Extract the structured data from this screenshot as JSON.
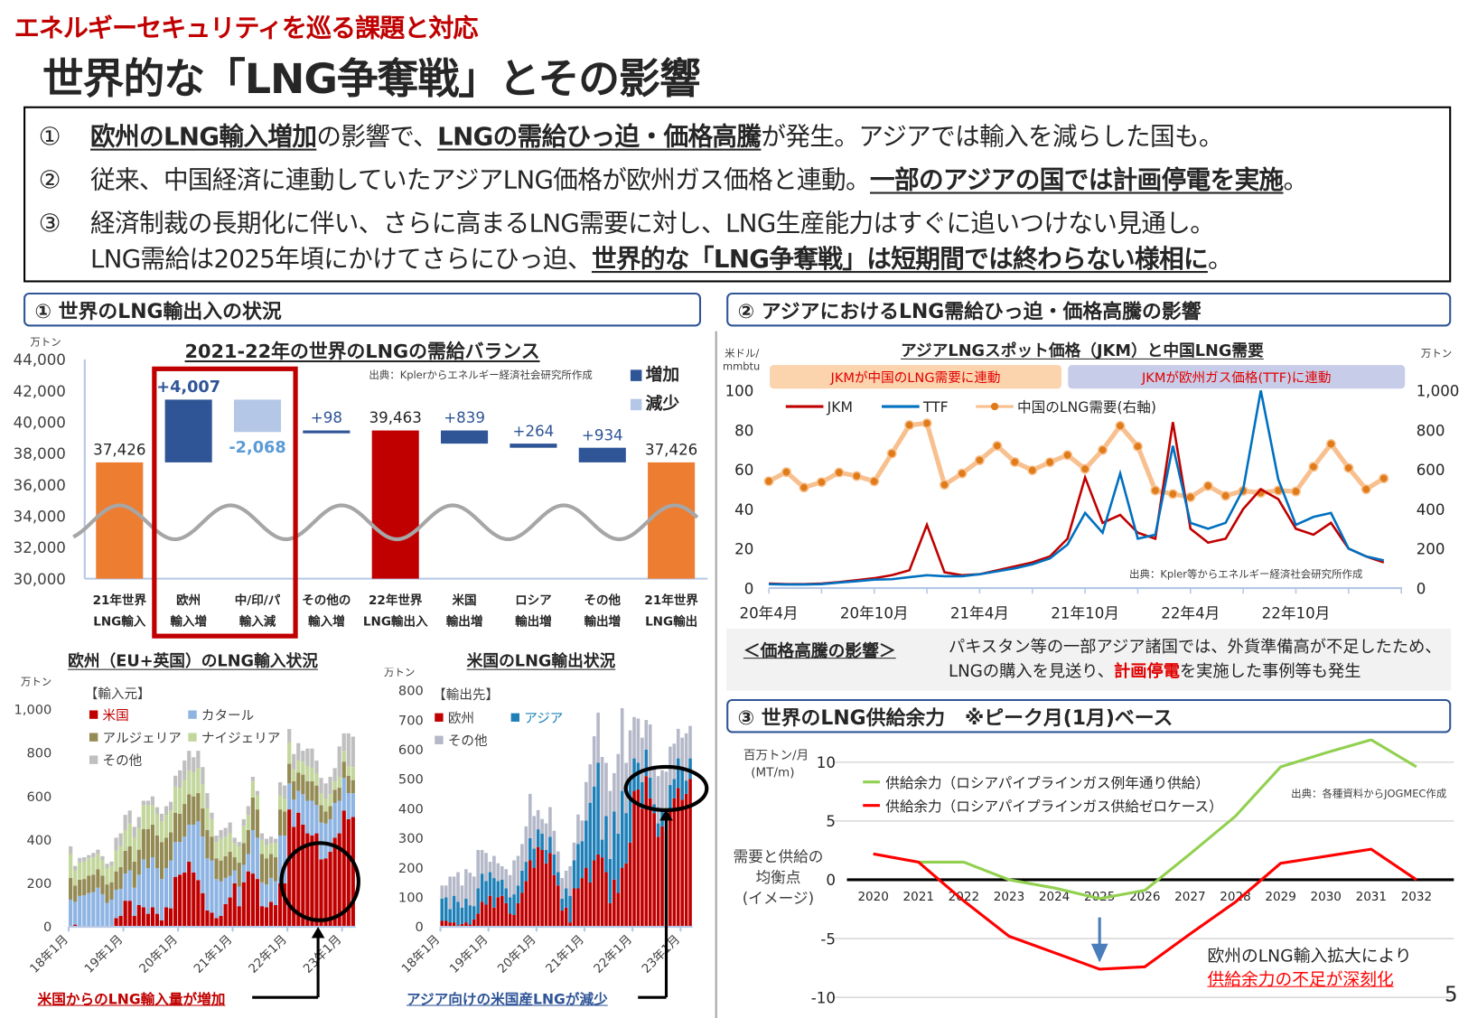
{
  "header": {
    "kicker": "エネルギーセキュリティを巡る課題と対応",
    "title": "世界的な「LNG争奪戦」とその影響"
  },
  "summary": {
    "line1": {
      "num": "①",
      "s1": "欧州のLNG輸入増加",
      "s2": "の影響で、",
      "s3": "LNGの需給ひっ迫・価格高騰",
      "s4": "が発生。アジアでは輸入を減らした国も。"
    },
    "line2": {
      "num": "②",
      "s1": "従来、中国経済に連動していたアジアLNG価格が欧州ガス価格と連動。",
      "s2": "一部のアジアの国では計画停電を実施",
      "s3": "。"
    },
    "line3": {
      "num": "③",
      "s1": "経済制裁の長期化に伴い、さらに高まるLNG需要に対し、LNG生産能力はすぐに追いつけない見通し。"
    },
    "line4": {
      "s1": "LNG需給は2025年頃にかけてさらにひっ迫、",
      "s2": "世界的な「LNG争奪戦」は短期間では終わらない様相に",
      "s3": "。"
    }
  },
  "sections": {
    "s1": "①  世界のLNG輸出入の状況",
    "s2": "②  アジアにおけるLNG需給ひっ迫・価格高騰の影響",
    "s3": "③  世界のLNG供給余力　※ピーク月(1月)ベース"
  },
  "impact": {
    "heading": "＜価格高騰の影響＞",
    "line1": "パキスタン等の一部アジア諸国では、外貨準備高が不足したため、",
    "line2a": "LNGの購入を見送り、",
    "line2b": "計画停電",
    "line2c": "を実施した事例等も発生"
  },
  "annotations": {
    "europe_caption": "米国からのLNG輸入量が増加",
    "us_caption": "アジア向けの米国産LNGが減少",
    "supply_note1": "欧州のLNG輸入拡大により",
    "supply_note2": "供給余力の不足が深刻化"
  },
  "page_number": "5",
  "colors": {
    "accent_red": "#c00000",
    "section_border": "#2f5597"
  },
  "chart_data": [
    {
      "id": "waterfall",
      "type": "bar",
      "subtype": "waterfall",
      "title": "2021-22年の世界のLNGの需給バランス",
      "unit": "万トン",
      "source": "出典：Kplerからエネルギー経済社会研究所作成",
      "ylim": [
        30000,
        44000
      ],
      "yticks": [
        "30,000",
        "32,000",
        "34,000",
        "36,000",
        "38,000",
        "40,000",
        "42,000",
        "44,000"
      ],
      "legend": [
        {
          "label": "増加",
          "color": "#2f5597"
        },
        {
          "label": "減少",
          "color": "#b4c7e7"
        }
      ],
      "legend_position": "top-right",
      "highlight": "欧州 / 中/印/パ",
      "categories": [
        {
          "line1": "21年世界",
          "line2": "LNG輸入",
          "value": 37426,
          "kind": "total",
          "label": "37,426",
          "color": "#ed7d31"
        },
        {
          "line1": "欧州",
          "line2": "輸入増",
          "value": 4007,
          "kind": "increase",
          "label": "+4,007",
          "color": "#2f5597"
        },
        {
          "line1": "中/印/パ",
          "line2": "輸入減",
          "value": -2068,
          "kind": "decrease",
          "label": "-2,068",
          "color": "#b4c7e7"
        },
        {
          "line1": "その他の",
          "line2": "輸入増",
          "value": 98,
          "kind": "increase",
          "label": "+98",
          "color": "#2f5597"
        },
        {
          "line1": "22年世界",
          "line2": "LNG輸出入",
          "value": 39463,
          "kind": "total",
          "label": "39,463",
          "color": "#c00000"
        },
        {
          "line1": "米国",
          "line2": "輸出増",
          "value": 839,
          "kind": "export-increase",
          "label": "+839",
          "color": "#2f5597"
        },
        {
          "line1": "ロシア",
          "line2": "輸出増",
          "value": 264,
          "kind": "export-increase",
          "label": "+264",
          "color": "#2f5597"
        },
        {
          "line1": "その他",
          "line2": "輸出増",
          "value": 934,
          "kind": "export-increase",
          "label": "+934",
          "color": "#2f5597"
        },
        {
          "line1": "21年世界",
          "line2": "LNG輸出",
          "value": 37426,
          "kind": "total",
          "label": "37,426",
          "color": "#ed7d31"
        }
      ]
    },
    {
      "id": "europe-imports",
      "type": "bar",
      "subtype": "stacked",
      "title": "欧州（EU+英国）のLNG輸入状況",
      "unit": "万トン",
      "ylim": [
        0,
        1000
      ],
      "yticks": [
        "0",
        "200",
        "400",
        "600",
        "800",
        "1,000"
      ],
      "xticks": [
        "18年1月",
        "19年1月",
        "20年1月",
        "21年1月",
        "22年1月",
        "23年1月"
      ],
      "x_start": "2018-01",
      "legend_title": "【輸入元】",
      "series": [
        {
          "name": "米国",
          "color": "#c00000",
          "values": [
            5,
            10,
            2,
            5,
            0,
            0,
            0,
            0,
            5,
            5,
            40,
            50,
            120,
            120,
            50,
            100,
            90,
            60,
            90,
            60,
            30,
            90,
            85,
            230,
            240,
            250,
            300,
            250,
            215,
            155,
            75,
            65,
            40,
            50,
            105,
            135,
            200,
            95,
            205,
            255,
            245,
            220,
            95,
            90,
            115,
            100,
            200,
            200,
            540,
            460,
            525,
            470,
            430,
            420,
            430,
            310,
            315,
            345,
            410,
            430,
            535,
            495,
            505
          ]
        },
        {
          "name": "カタール",
          "color": "#8eb4e3",
          "values": [
            120,
            105,
            140,
            140,
            155,
            160,
            180,
            150,
            105,
            120,
            130,
            125,
            125,
            140,
            130,
            140,
            220,
            210,
            230,
            210,
            190,
            180,
            220,
            160,
            150,
            165,
            170,
            220,
            270,
            260,
            240,
            240,
            180,
            160,
            120,
            100,
            60,
            90,
            80,
            80,
            200,
            190,
            110,
            105,
            110,
            110,
            220,
            220,
            120,
            125,
            100,
            140,
            150,
            160,
            130,
            170,
            160,
            150,
            160,
            150,
            150,
            120,
            110
          ]
        },
        {
          "name": "アルジェリア",
          "color": "#948a54",
          "values": [
            100,
            75,
            75,
            75,
            80,
            80,
            85,
            85,
            85,
            80,
            85,
            100,
            105,
            110,
            120,
            115,
            140,
            180,
            150,
            150,
            170,
            140,
            130,
            135,
            130,
            150,
            140,
            130,
            130,
            130,
            130,
            110,
            95,
            95,
            100,
            110,
            60,
            110,
            100,
            110,
            150,
            130,
            130,
            120,
            110,
            110,
            120,
            110,
            90,
            85,
            85,
            90,
            90,
            90,
            90,
            80,
            55,
            60,
            60,
            60,
            75,
            80,
            60
          ]
        },
        {
          "name": "ナイジェリア",
          "color": "#c3d69b",
          "values": [
            110,
            70,
            80,
            80,
            80,
            80,
            70,
            70,
            75,
            75,
            95,
            95,
            95,
            105,
            110,
            100,
            110,
            110,
            90,
            100,
            95,
            105,
            100,
            120,
            120,
            110,
            110,
            110,
            115,
            110,
            100,
            80,
            75,
            100,
            90,
            85,
            65,
            75,
            80,
            70,
            75,
            65,
            65,
            60,
            50,
            65,
            65,
            60,
            100,
            55,
            55,
            60,
            70,
            60,
            55,
            55,
            60,
            55,
            40,
            50,
            50,
            45,
            60
          ]
        },
        {
          "name": "その他",
          "color": "#bfbfbf",
          "values": [
            35,
            20,
            20,
            20,
            15,
            20,
            20,
            20,
            20,
            20,
            60,
            60,
            70,
            60,
            50,
            50,
            20,
            20,
            40,
            30,
            35,
            40,
            40,
            50,
            80,
            90,
            90,
            70,
            80,
            80,
            70,
            30,
            30,
            40,
            40,
            50,
            25,
            20,
            30,
            40,
            20,
            20,
            30,
            30,
            30,
            20,
            60,
            60,
            60,
            70,
            80,
            50,
            80,
            90,
            60,
            70,
            70,
            80,
            60,
            140,
            80,
            150,
            140
          ]
        }
      ]
    },
    {
      "id": "us-exports",
      "type": "bar",
      "subtype": "stacked",
      "title": "米国のLNG輸出状況",
      "unit": "万トン",
      "ylim": [
        0,
        800
      ],
      "yticks": [
        "0",
        "100",
        "200",
        "300",
        "400",
        "500",
        "600",
        "700",
        "800"
      ],
      "xticks": [
        "18年1月",
        "19年1月",
        "20年1月",
        "21年1月",
        "22年1月",
        "23年1月"
      ],
      "x_start": "2018-01",
      "legend_title": "【輸出先】",
      "series": [
        {
          "name": "欧州",
          "color": "#c00000",
          "values": [
            20,
            20,
            15,
            15,
            5,
            10,
            15,
            8,
            25,
            45,
            85,
            75,
            105,
            65,
            100,
            105,
            80,
            45,
            40,
            80,
            115,
            155,
            225,
            200,
            270,
            260,
            215,
            250,
            175,
            140,
            55,
            65,
            15,
            130,
            130,
            165,
            200,
            150,
            225,
            245,
            235,
            185,
            80,
            160,
            115,
            200,
            215,
            285,
            460,
            465,
            400,
            510,
            435,
            385,
            305,
            340,
            325,
            400,
            435,
            470,
            430,
            450,
            500
          ]
        },
        {
          "name": "アジア",
          "color": "#1f80b8",
          "values": [
            75,
            80,
            45,
            90,
            80,
            55,
            80,
            65,
            45,
            85,
            95,
            80,
            80,
            100,
            55,
            55,
            50,
            55,
            70,
            60,
            75,
            65,
            75,
            65,
            60,
            55,
            45,
            55,
            70,
            45,
            40,
            65,
            90,
            95,
            150,
            125,
            160,
            270,
            250,
            310,
            60,
            190,
            150,
            230,
            200,
            260,
            170,
            220,
            110,
            90,
            90,
            90,
            70,
            30,
            45,
            60,
            70,
            80,
            65,
            100,
            110,
            45,
            70
          ]
        },
        {
          "name": "その他",
          "color": "#b4b8c8",
          "values": [
            45,
            40,
            110,
            65,
            100,
            75,
            100,
            110,
            100,
            130,
            80,
            95,
            35,
            75,
            60,
            45,
            65,
            75,
            115,
            100,
            90,
            120,
            150,
            110,
            65,
            50,
            90,
            100,
            80,
            70,
            70,
            60,
            100,
            60,
            100,
            70,
            130,
            130,
            170,
            170,
            280,
            180,
            230,
            130,
            270,
            280,
            170,
            160,
            140,
            150,
            150,
            100,
            180,
            130,
            160,
            130,
            130,
            130,
            120,
            100,
            100,
            160,
            110
          ]
        }
      ]
    },
    {
      "id": "jkm-price",
      "type": "line",
      "title": "アジアLNGスポット価格（JKM）と中国LNG需要",
      "ylabel_left": "米ドル/mmbtu",
      "ylabel_right": "万トン",
      "ylim_left": [
        0,
        100
      ],
      "ylim_right": [
        0,
        1000
      ],
      "yticks_left": [
        "0",
        "20",
        "40",
        "60",
        "80",
        "100"
      ],
      "yticks_right": [
        "0",
        "200",
        "400",
        "600",
        "800",
        "1,000"
      ],
      "xticks": [
        "20年4月",
        "20年10月",
        "21年4月",
        "21年10月",
        "22年4月",
        "22年10月"
      ],
      "x_start": "2020-04",
      "source": "出典：Kpler等からエネルギー経済社会研究所作成",
      "bands": [
        {
          "label": "JKMが中国のLNG需要に連動",
          "color": "#fbd3ad"
        },
        {
          "label": "JKMが欧州ガス価格(TTF)に連動",
          "color": "#c7cde9"
        }
      ],
      "series": [
        {
          "name": "JKM",
          "color": "#c00000",
          "axis": "left",
          "values": [
            2.3,
            2.0,
            2.0,
            2.3,
            3.0,
            4.0,
            5.0,
            6.5,
            9.0,
            32,
            8,
            6.5,
            7.0,
            9.0,
            11,
            13,
            16,
            25,
            56,
            33,
            37,
            28,
            25,
            84,
            30,
            23,
            25,
            40,
            50,
            45,
            30,
            27,
            33,
            20,
            16,
            13
          ]
        },
        {
          "name": "TTF",
          "color": "#0070c0",
          "axis": "left",
          "values": [
            2.0,
            1.8,
            1.8,
            2.0,
            2.8,
            3.5,
            4.3,
            4.5,
            5.5,
            6.5,
            6.0,
            6.0,
            7.0,
            8.5,
            10,
            12,
            15,
            22,
            38,
            28,
            58,
            25,
            27,
            72,
            33,
            30,
            33,
            50,
            100,
            55,
            32,
            36,
            38,
            20,
            16,
            14
          ]
        },
        {
          "name": "中国のLNG需要(右軸)",
          "color": "#f8c08f",
          "marker_color": "#e07b1a",
          "axis": "right",
          "values": [
            541,
            587,
            509,
            536,
            585,
            567,
            540,
            681,
            825,
            834,
            523,
            580,
            647,
            720,
            638,
            596,
            637,
            673,
            603,
            699,
            821,
            717,
            494,
            476,
            460,
            517,
            467,
            492,
            482,
            494,
            489,
            614,
            729,
            608,
            500,
            555
          ]
        }
      ]
    },
    {
      "id": "supply-margin",
      "type": "line",
      "ylabel": "百万トン/月\n(MT/m)",
      "ylabel_line1": "百万トン/月",
      "ylabel_line2": "(MT/m)",
      "zero_label": [
        "需要と供給の",
        "均衡点",
        "(イメージ)"
      ],
      "ylim": [
        -10,
        10
      ],
      "yticks": [
        "-10",
        "-5",
        "0",
        "5",
        "10"
      ],
      "categories": [
        "2020",
        "2021",
        "2022",
        "2023",
        "2024",
        "2025",
        "2026",
        "2027",
        "2028",
        "2029",
        "2030",
        "2031",
        "2032"
      ],
      "source": "出典：各種資料からJOGMEC作成",
      "series": [
        {
          "name": "供給余力（ロシアパイプラインガス例年通り供給）",
          "color": "#92d050",
          "values": [
            null,
            1.5,
            1.5,
            0,
            -0.7,
            -1.6,
            -0.9,
            2.2,
            5.4,
            9.6,
            10.8,
            11.9,
            9.6
          ]
        },
        {
          "name": "供給余力（ロシアパイプラインガス供給ゼロケース）",
          "color": "#ff0000",
          "values": [
            2.2,
            1.5,
            -1.8,
            -4.8,
            -6.2,
            -7.6,
            -7.4,
            -4.6,
            -1.9,
            1.4,
            2.0,
            2.6,
            0
          ]
        }
      ]
    }
  ]
}
